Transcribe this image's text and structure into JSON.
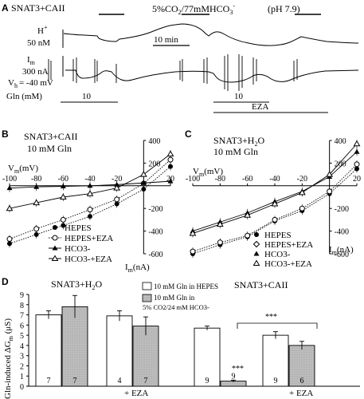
{
  "panel_a": {
    "letter": "A",
    "construct": "SNAT3+CAII",
    "solution": "5%CO",
    "solution_sub2": "2",
    "solution_mid": "/77mMHCO",
    "solution_sub3": "3",
    "solution_sup": "-",
    "ph": "(pH 7.9)",
    "h_label": "H",
    "h_sup": "+",
    "h_scale": "50 nM",
    "time_scale": "10 min",
    "im_label": "I",
    "im_sub": "m",
    "im_scale": "300 nA",
    "vh_label": "V",
    "vh_sub": "h",
    "vh_value": "= -40 mV",
    "gln_label": "Gln (mM)",
    "gln_value_1": "10",
    "gln_value_2": "10",
    "eza_label": "EZA"
  },
  "panel_b": {
    "letter": "B",
    "construct": "SNAT3+CAII",
    "condition": "10 mM Gln",
    "vm_label": "V",
    "vm_sub": "m",
    "vm_unit": "(mV)",
    "im_label": "I",
    "im_sub": "m",
    "im_unit": "(nA)",
    "x_ticks": [
      "-100",
      "-80",
      "-60",
      "-40",
      "-20",
      "20"
    ],
    "y_ticks": [
      "400",
      "200",
      "-200",
      "-400",
      "-600"
    ],
    "legend": [
      "HEPES",
      "HEPES+EZA",
      "HCO3-",
      "HCO3-+EZA"
    ]
  },
  "panel_c": {
    "letter": "C",
    "construct": "SNAT3+H",
    "construct_sub": "2",
    "construct_tail": "O",
    "condition": "10 mM Gln",
    "vm_label": "V",
    "vm_sub": "m",
    "vm_unit": "(mV)",
    "im_label": "I",
    "im_sub": "m",
    "im_unit": "(nA)",
    "x_ticks": [
      "-100",
      "-80",
      "-60",
      "-40",
      "-20",
      "20"
    ],
    "y_ticks": [
      "400",
      "200",
      "-200",
      "-400",
      "-600"
    ],
    "legend": [
      "HEPES",
      "HEPES+EZA",
      "HCO3-",
      "HCO3-+EZA"
    ]
  },
  "panel_d": {
    "letter": "D",
    "title_left": "SNAT3+H",
    "title_left_sub": "2",
    "title_left_tail": "O",
    "title_right": "SNAT3+CAII",
    "ylabel": "Gln-induced ΔG",
    "ylabel_sub": "m",
    "ylabel_unit": " (μS)",
    "y_ticks": [
      "0",
      "1",
      "2",
      "3",
      "4",
      "5",
      "6",
      "7",
      "8",
      "9"
    ],
    "legend_open": "10 mM Gln in HEPES",
    "legend_filled_1": "10 mM Gln in",
    "legend_filled_2": "5% CO2/24 mM HCO3-",
    "eza_label_1": "+ EZA",
    "eza_label_2": "+ EZA",
    "sig_1": "***",
    "sig_2": "***",
    "n_labels": [
      "7",
      "7",
      "4",
      "7",
      "9",
      "9",
      "9",
      "6"
    ]
  },
  "chart_data": [
    {
      "panel": "B",
      "type": "line",
      "title": "SNAT3+CAII 10 mM Gln",
      "xlabel": "Vm(mV)",
      "ylabel": "Im(nA)",
      "xlim": [
        -100,
        20
      ],
      "ylim": [
        -600,
        400
      ],
      "x": [
        -100,
        -80,
        -60,
        -40,
        -20,
        0,
        20
      ],
      "series": [
        {
          "name": "HEPES",
          "values": [
            -510,
            -430,
            -350,
            -270,
            -160,
            -30,
            170
          ],
          "style": "filled-circle",
          "line": "dotted"
        },
        {
          "name": "HEPES+EZA",
          "values": [
            -470,
            -380,
            -300,
            -210,
            -120,
            20,
            230
          ],
          "style": "open-circle",
          "line": "dotted"
        },
        {
          "name": "HCO3-",
          "values": [
            -20,
            -10,
            -5,
            0,
            10,
            25,
            40
          ],
          "style": "filled-triangle",
          "line": "solid"
        },
        {
          "name": "HCO3-+EZA",
          "values": [
            -200,
            -150,
            -100,
            -70,
            -20,
            100,
            280
          ],
          "style": "open-triangle",
          "line": "solid"
        }
      ]
    },
    {
      "panel": "C",
      "type": "line",
      "title": "SNAT3+H2O 10 mM Gln",
      "xlabel": "Vm(mV)",
      "ylabel": "Im(nA)",
      "xlim": [
        -100,
        20
      ],
      "ylim": [
        -600,
        400
      ],
      "x": [
        -100,
        -80,
        -60,
        -40,
        -20,
        0,
        20
      ],
      "series": [
        {
          "name": "HEPES",
          "values": [
            -600,
            -520,
            -450,
            -310,
            -220,
            -70,
            150
          ],
          "style": "filled-circle",
          "line": "dotted"
        },
        {
          "name": "HEPES+EZA",
          "values": [
            -580,
            -500,
            -440,
            -300,
            -200,
            -50,
            190
          ],
          "style": "open-circle",
          "line": "dotted"
        },
        {
          "name": "HCO3-",
          "values": [
            -400,
            -320,
            -240,
            -140,
            -50,
            80,
            300
          ],
          "style": "filled-triangle",
          "line": "solid"
        },
        {
          "name": "HCO3-+EZA",
          "values": [
            -420,
            -340,
            -260,
            -160,
            -60,
            100,
            370
          ],
          "style": "open-triangle",
          "line": "solid"
        }
      ]
    },
    {
      "panel": "D",
      "type": "bar",
      "ylabel": "Gln-induced ΔGm (μS)",
      "ylim": [
        0,
        9
      ],
      "categories": [
        "SNAT3+H2O",
        "SNAT3+H2O + EZA",
        "SNAT3+CAII",
        "SNAT3+CAII + EZA"
      ],
      "series": [
        {
          "name": "10 mM Gln in HEPES",
          "values": [
            7.0,
            6.9,
            5.7,
            5.0
          ],
          "errors": [
            0.4,
            0.5,
            0.2,
            0.35
          ],
          "n": [
            7,
            4,
            9,
            9
          ]
        },
        {
          "name": "10 mM Gln in 5% CO2/24 mM HCO3-",
          "values": [
            7.8,
            5.9,
            0.5,
            4.0
          ],
          "errors": [
            1.1,
            0.9,
            0.1,
            0.4
          ],
          "n": [
            7,
            7,
            9,
            6
          ]
        }
      ]
    }
  ]
}
